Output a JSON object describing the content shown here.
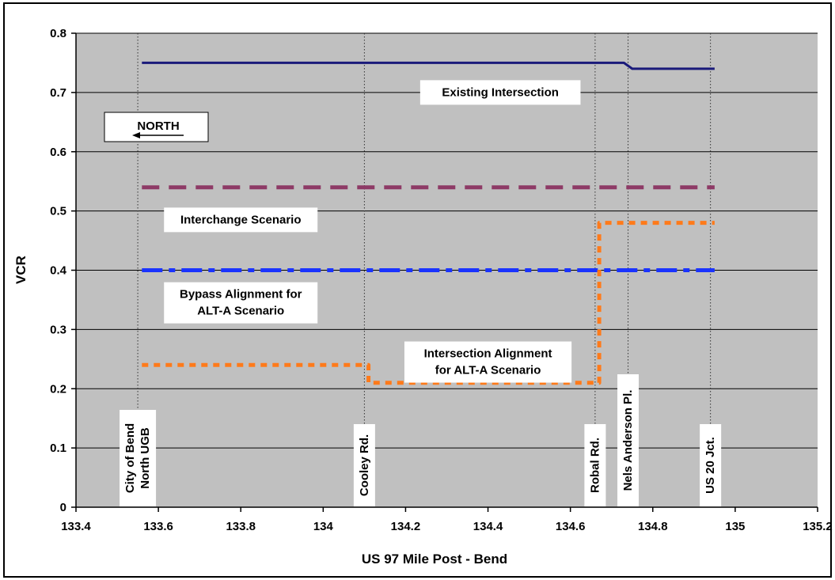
{
  "chart_data": {
    "type": "line",
    "xlabel": "US 97 Mile Post - Bend",
    "ylabel": "VCR",
    "xlim": [
      133.4,
      135.2
    ],
    "ylim": [
      0,
      0.8
    ],
    "xticks": [
      133.4,
      133.6,
      133.8,
      134,
      134.2,
      134.4,
      134.6,
      134.8,
      135,
      135.2
    ],
    "xtick_labels": [
      "133.4",
      "133.6",
      "133.8",
      "134",
      "134.2",
      "134.4",
      "134.6",
      "134.8",
      "135",
      "135.2"
    ],
    "yticks": [
      0,
      0.1,
      0.2,
      0.3,
      0.4,
      0.5,
      0.6,
      0.7,
      0.8
    ],
    "ytick_labels": [
      "0",
      "0.1",
      "0.2",
      "0.3",
      "0.4",
      "0.5",
      "0.6",
      "0.7",
      "0.8"
    ],
    "grid": "horizontal",
    "background": "#c0c0c0",
    "series": [
      {
        "name": "Existing Intersection",
        "color": "#1a1a7a",
        "style": "solid",
        "x": [
          133.56,
          134.73,
          134.75,
          134.95
        ],
        "y": [
          0.75,
          0.75,
          0.74,
          0.74
        ]
      },
      {
        "name": "Interchange Scenario",
        "color": "#8e3a66",
        "style": "dashed",
        "x": [
          133.56,
          134.95
        ],
        "y": [
          0.54,
          0.54
        ]
      },
      {
        "name": "Bypass Alignment for ALT-A Scenario",
        "color": "#1a33ff",
        "style": "dashdot",
        "x": [
          133.56,
          134.95
        ],
        "y": [
          0.4,
          0.4
        ]
      },
      {
        "name": "Intersection Alignment for ALT-A Scenario",
        "color": "#ff7a1a",
        "style": "dotted",
        "x": [
          133.56,
          134.11,
          134.11,
          134.67,
          134.67,
          134.95
        ],
        "y": [
          0.24,
          0.24,
          0.21,
          0.21,
          0.48,
          0.48
        ]
      }
    ],
    "series_labels": [
      {
        "lines": [
          "Existing Intersection"
        ],
        "x": 134.43,
        "y": 0.7
      },
      {
        "lines": [
          "Interchange Scenario"
        ],
        "x": 133.8,
        "y": 0.485
      },
      {
        "lines": [
          "Bypass Alignment for",
          "ALT-A Scenario"
        ],
        "x": 133.8,
        "y": 0.345
      },
      {
        "lines": [
          "Intersection Alignment",
          "for ALT-A Scenario"
        ],
        "x": 134.4,
        "y": 0.245
      }
    ],
    "location_markers": [
      {
        "x": 133.55,
        "lines": [
          "City of Bend",
          "North UGB"
        ]
      },
      {
        "x": 134.1,
        "lines": [
          "Cooley Rd."
        ]
      },
      {
        "x": 134.66,
        "lines": [
          "Robal  Rd."
        ]
      },
      {
        "x": 134.74,
        "lines": [
          "Nels Anderson Pl."
        ]
      },
      {
        "x": 134.94,
        "lines": [
          "US 20 Jct."
        ]
      }
    ],
    "annotations": [
      {
        "text": "NORTH",
        "arrow": "left"
      }
    ]
  }
}
